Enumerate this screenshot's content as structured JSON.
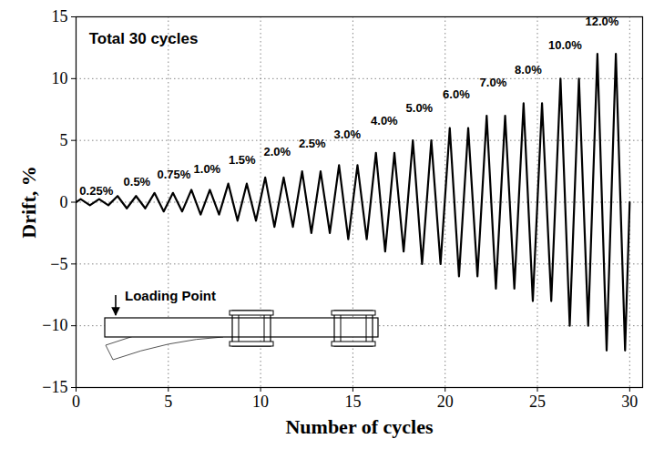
{
  "chart_data": {
    "type": "line",
    "x_label": "Number of cycles",
    "y_label": "Drift, %",
    "x": [
      0,
      0.25,
      0.75,
      1.25,
      1.75,
      2.25,
      2.75,
      3.25,
      3.75,
      4.25,
      4.75,
      5.25,
      5.75,
      6.25,
      6.75,
      7.25,
      7.75,
      8.25,
      8.75,
      9.25,
      9.75,
      10.25,
      10.75,
      11.25,
      11.75,
      12.25,
      12.75,
      13.25,
      13.75,
      14.25,
      14.75,
      15.25,
      15.75,
      16.25,
      16.75,
      17.25,
      17.75,
      18.25,
      18.75,
      19.25,
      19.75,
      20.25,
      20.75,
      21.25,
      21.75,
      22.25,
      22.75,
      23.25,
      23.75,
      24.25,
      24.75,
      25.25,
      25.75,
      26.25,
      26.75,
      27.25,
      27.75,
      28.25,
      28.75,
      29.25,
      29.75,
      30
    ],
    "values": [
      0,
      0.25,
      -0.25,
      0.25,
      -0.25,
      0.5,
      -0.5,
      0.5,
      -0.5,
      0.75,
      -0.75,
      0.75,
      -0.75,
      1,
      -1,
      1,
      -1,
      1.5,
      -1.5,
      1.5,
      -1.5,
      2,
      -2,
      2,
      -2,
      2.5,
      -2.5,
      2.5,
      -2.5,
      3,
      -3,
      3,
      -3,
      4,
      -4,
      4,
      -4,
      5,
      -5,
      5,
      -5,
      6,
      -6,
      6,
      -6,
      7,
      -7,
      7,
      -7,
      8,
      -8,
      8,
      -8,
      10,
      -10,
      10,
      -10,
      12,
      -12,
      12,
      -12,
      0
    ],
    "color": "#000000",
    "xlim": [
      0,
      30.7
    ],
    "xticks": [
      0,
      5,
      10,
      15,
      20,
      25,
      30
    ],
    "ylim": [
      -15,
      15
    ],
    "yticks": [
      -15,
      -10,
      -5,
      0,
      5,
      10,
      15
    ],
    "grid": true,
    "note": {
      "text": "Total 30 cycles",
      "x": 0.7,
      "y": 13.2
    },
    "annotations": [
      {
        "text": "0.25%",
        "x": 1.1,
        "y": 0.9
      },
      {
        "text": "0.5%",
        "x": 3.3,
        "y": 1.6
      },
      {
        "text": "0.75%",
        "x": 5.3,
        "y": 2.2
      },
      {
        "text": "1.0%",
        "x": 7.1,
        "y": 2.7
      },
      {
        "text": "1.5%",
        "x": 9.0,
        "y": 3.4
      },
      {
        "text": "2.0%",
        "x": 10.9,
        "y": 4.1
      },
      {
        "text": "2.5%",
        "x": 12.8,
        "y": 4.7
      },
      {
        "text": "3.0%",
        "x": 14.7,
        "y": 5.5
      },
      {
        "text": "4.0%",
        "x": 16.7,
        "y": 6.6
      },
      {
        "text": "5.0%",
        "x": 18.6,
        "y": 7.6
      },
      {
        "text": "6.0%",
        "x": 20.6,
        "y": 8.7
      },
      {
        "text": "7.0%",
        "x": 22.6,
        "y": 9.7
      },
      {
        "text": "8.0%",
        "x": 24.5,
        "y": 10.7
      },
      {
        "text": "10.0%",
        "x": 26.5,
        "y": 12.7
      },
      {
        "text": "12.0%",
        "x": 28.5,
        "y": 14.6
      }
    ],
    "inset": {
      "label": "Loading Point"
    }
  }
}
